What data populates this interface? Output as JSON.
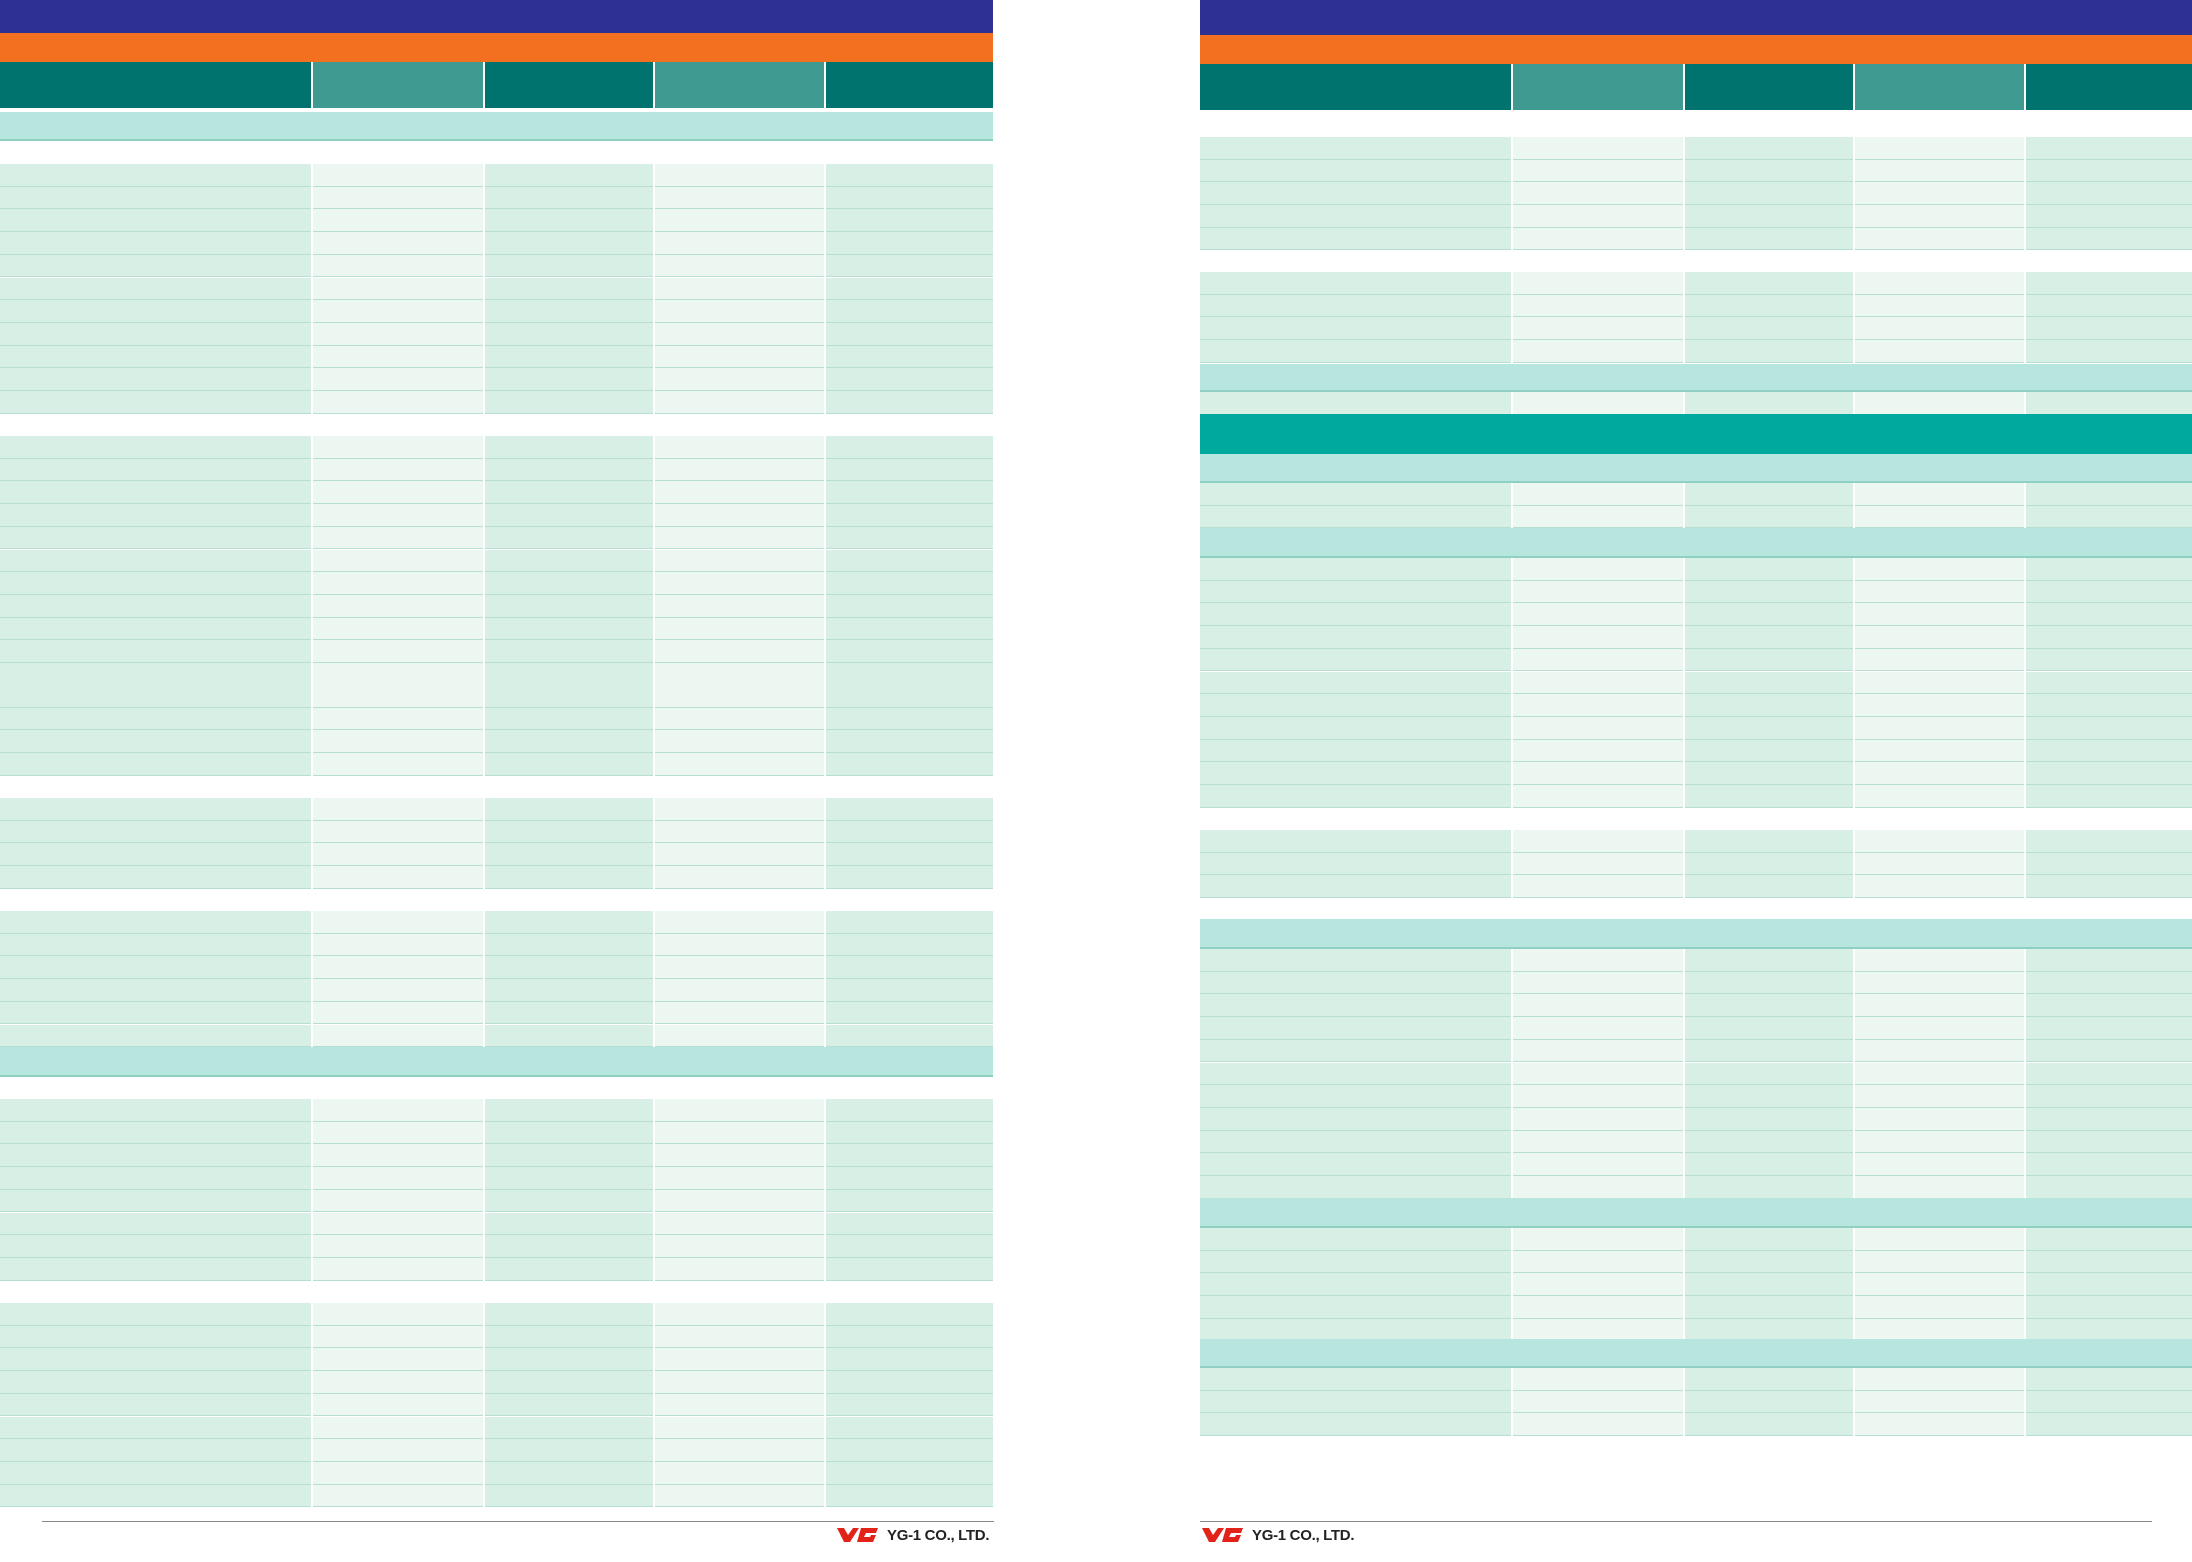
{
  "colors": {
    "title_band": "#2e3192",
    "orange_band": "#f37021",
    "header_dark": "#00736f",
    "header_light": "#3f9b91",
    "section_light": "#b6e6de",
    "section_strong": "#00a99d",
    "cell_dark": "#d7efe5",
    "cell_light": "#ecf7f1",
    "cell_border": "#b7ded3"
  },
  "left_page": {
    "footer": {
      "logo_icon": "yg1-logo-icon",
      "company": "YG-1 CO., LTD."
    }
  },
  "right_page": {
    "footer": {
      "logo_icon": "yg1-logo-icon",
      "company": "YG-1 CO., LTD."
    }
  }
}
